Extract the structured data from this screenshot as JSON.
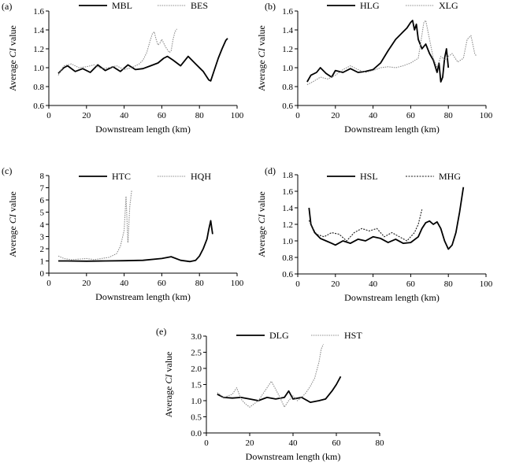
{
  "chart_data": [
    {
      "panel": "(a)",
      "type": "line",
      "xlabel": "Downstream length (km)",
      "ylabel_pre": "Average ",
      "ylabel_italic": "CI",
      "ylabel_post": " value",
      "xlim": [
        0,
        100
      ],
      "ylim": [
        0.6,
        1.6
      ],
      "xticks": [
        0,
        20,
        40,
        60,
        80,
        100
      ],
      "yticks": [
        0.6,
        0.8,
        1.0,
        1.2,
        1.4,
        1.6
      ],
      "ytick_labels": [
        "0.6",
        "0.8",
        "1.0",
        "1.2",
        "1.4",
        "1.6"
      ],
      "series": [
        {
          "name": "MBL",
          "style": "solid",
          "x": [
            5,
            8,
            10,
            14,
            18,
            22,
            26,
            30,
            34,
            38,
            42,
            46,
            50,
            54,
            58,
            61,
            63,
            66,
            70,
            74,
            78,
            82,
            85,
            86,
            88,
            90,
            92,
            94,
            95
          ],
          "y": [
            0.94,
            1.0,
            1.02,
            0.96,
            0.99,
            0.95,
            1.03,
            0.97,
            1.01,
            0.96,
            1.03,
            0.98,
            0.99,
            1.02,
            1.05,
            1.1,
            1.12,
            1.08,
            1.02,
            1.12,
            1.04,
            0.96,
            0.87,
            0.86,
            0.98,
            1.1,
            1.2,
            1.29,
            1.31
          ]
        },
        {
          "name": "BES",
          "style": "dotted",
          "x": [
            5,
            8,
            12,
            16,
            20,
            24,
            28,
            32,
            36,
            40,
            44,
            48,
            50,
            52,
            54,
            55,
            56,
            57,
            58,
            59,
            60,
            62,
            64,
            65,
            66,
            67,
            68
          ],
          "y": [
            0.92,
            1.02,
            1.04,
            1.0,
            1.01,
            1.03,
            0.99,
            1.0,
            1.02,
            0.98,
            1.0,
            1.04,
            1.08,
            1.16,
            1.3,
            1.36,
            1.38,
            1.3,
            1.24,
            1.26,
            1.3,
            1.22,
            1.16,
            1.18,
            1.3,
            1.38,
            1.41
          ]
        }
      ]
    },
    {
      "panel": "(b)",
      "type": "line",
      "xlabel": "Downstream length (km)",
      "ylabel_pre": "Average ",
      "ylabel_italic": "CI",
      "ylabel_post": " value",
      "xlim": [
        0,
        100
      ],
      "ylim": [
        0.6,
        1.6
      ],
      "xticks": [
        0,
        20,
        40,
        60,
        80,
        100
      ],
      "yticks": [
        0.6,
        0.8,
        1.0,
        1.2,
        1.4,
        1.6
      ],
      "ytick_labels": [
        "0.6",
        "0.8",
        "1.0",
        "1.2",
        "1.4",
        "1.6"
      ],
      "series": [
        {
          "name": "HLG",
          "style": "solid",
          "x": [
            5,
            7,
            10,
            12,
            15,
            18,
            20,
            24,
            28,
            32,
            36,
            40,
            44,
            48,
            52,
            56,
            58,
            60,
            61,
            62,
            63,
            64,
            66,
            68,
            70,
            72,
            74,
            75,
            76,
            77,
            78,
            79,
            80
          ],
          "y": [
            0.85,
            0.92,
            0.95,
            1.0,
            0.94,
            0.9,
            0.97,
            0.95,
            0.99,
            0.95,
            0.96,
            0.98,
            1.05,
            1.18,
            1.3,
            1.38,
            1.42,
            1.48,
            1.5,
            1.4,
            1.46,
            1.3,
            1.2,
            1.25,
            1.15,
            1.08,
            0.95,
            1.05,
            0.85,
            0.9,
            1.1,
            1.2,
            1.0
          ]
        },
        {
          "name": "XLG",
          "style": "dotted",
          "x": [
            5,
            8,
            12,
            16,
            20,
            24,
            28,
            32,
            36,
            40,
            44,
            48,
            52,
            56,
            60,
            64,
            66,
            67,
            68,
            70,
            72,
            74,
            76,
            78,
            80,
            82,
            85,
            88,
            90,
            92,
            94,
            95
          ],
          "y": [
            0.82,
            0.85,
            0.9,
            0.88,
            0.92,
            0.98,
            1.02,
            0.98,
            0.95,
            0.97,
            1.0,
            1.01,
            1.0,
            1.02,
            1.05,
            1.1,
            1.35,
            1.48,
            1.5,
            1.3,
            1.1,
            1.0,
            1.12,
            1.08,
            1.12,
            1.15,
            1.06,
            1.1,
            1.3,
            1.34,
            1.15,
            1.12
          ]
        }
      ]
    },
    {
      "panel": "(c)",
      "type": "line",
      "xlabel": "Downstream length (km)",
      "ylabel_pre": "Average ",
      "ylabel_italic": "CI",
      "ylabel_post": " value",
      "xlim": [
        0,
        100
      ],
      "ylim": [
        0,
        8
      ],
      "xticks": [
        0,
        20,
        40,
        60,
        80,
        100
      ],
      "yticks": [
        0,
        1,
        2,
        3,
        4,
        5,
        6,
        7,
        8
      ],
      "ytick_labels": [
        "0",
        "1",
        "2",
        "3",
        "4",
        "5",
        "6",
        "7",
        "8"
      ],
      "series": [
        {
          "name": "HTC",
          "style": "solid",
          "x": [
            5,
            10,
            20,
            30,
            40,
            50,
            60,
            65,
            70,
            75,
            78,
            80,
            82,
            84,
            85,
            86,
            87
          ],
          "y": [
            1.0,
            1.0,
            0.98,
            1.0,
            1.02,
            1.05,
            1.2,
            1.35,
            1.05,
            0.95,
            1.05,
            1.4,
            2.0,
            2.8,
            3.6,
            4.3,
            3.2
          ]
        },
        {
          "name": "HQH",
          "style": "dotted",
          "x": [
            5,
            8,
            12,
            16,
            20,
            24,
            28,
            32,
            36,
            38,
            40,
            41,
            42,
            43,
            44
          ],
          "y": [
            1.4,
            1.2,
            1.1,
            1.15,
            1.2,
            1.1,
            1.2,
            1.3,
            1.6,
            2.2,
            3.5,
            6.3,
            2.5,
            5.5,
            6.8
          ]
        }
      ]
    },
    {
      "panel": "(d)",
      "type": "line",
      "xlabel": "Downstream length (km)",
      "ylabel_pre": "Average ",
      "ylabel_italic": "CI",
      "ylabel_post": " value",
      "xlim": [
        0,
        100
      ],
      "ylim": [
        0.6,
        1.8
      ],
      "xticks": [
        0,
        20,
        40,
        60,
        80,
        100
      ],
      "yticks": [
        0.6,
        0.8,
        1.0,
        1.2,
        1.4,
        1.6,
        1.8
      ],
      "ytick_labels": [
        "0.6",
        "0.8",
        "1.0",
        "1.2",
        "1.4",
        "1.6",
        "1.8"
      ],
      "series": [
        {
          "name": "HSL",
          "style": "solid",
          "x": [
            6,
            7,
            9,
            12,
            15,
            18,
            20,
            24,
            28,
            32,
            36,
            40,
            44,
            48,
            52,
            56,
            60,
            64,
            66,
            68,
            70,
            72,
            74,
            76,
            78,
            80,
            82,
            84,
            86,
            88
          ],
          "y": [
            1.4,
            1.2,
            1.1,
            1.03,
            1.0,
            0.97,
            0.95,
            1.0,
            0.97,
            1.02,
            1.0,
            1.05,
            1.03,
            0.98,
            1.02,
            0.97,
            0.98,
            1.05,
            1.15,
            1.22,
            1.24,
            1.2,
            1.23,
            1.15,
            1.0,
            0.9,
            0.95,
            1.1,
            1.35,
            1.65
          ]
        },
        {
          "name": "MHG",
          "style": "dashed",
          "x": [
            6,
            8,
            10,
            14,
            18,
            22,
            26,
            30,
            34,
            38,
            42,
            46,
            50,
            54,
            58,
            62,
            64,
            66
          ],
          "y": [
            1.25,
            1.15,
            1.08,
            1.05,
            1.1,
            1.08,
            1.0,
            1.1,
            1.15,
            1.12,
            1.15,
            1.05,
            1.1,
            1.05,
            1.0,
            1.1,
            1.2,
            1.38
          ]
        }
      ]
    },
    {
      "panel": "(e)",
      "type": "line",
      "xlabel": "Downstream length (km)",
      "ylabel_pre": "Average ",
      "ylabel_italic": "CI",
      "ylabel_post": " value",
      "xlim": [
        0,
        80
      ],
      "ylim": [
        0.0,
        3.0
      ],
      "xticks": [
        0,
        20,
        40,
        60,
        80
      ],
      "yticks": [
        0.0,
        0.5,
        1.0,
        1.5,
        2.0,
        2.5,
        3.0
      ],
      "ytick_labels": [
        "0.0",
        "0.5",
        "1.0",
        "1.5",
        "2.0",
        "2.5",
        "3.0"
      ],
      "series": [
        {
          "name": "DLG",
          "style": "solid",
          "x": [
            5,
            8,
            12,
            16,
            20,
            24,
            28,
            32,
            36,
            38,
            40,
            44,
            48,
            52,
            55,
            58,
            60,
            62
          ],
          "y": [
            1.2,
            1.1,
            1.08,
            1.1,
            1.05,
            1.0,
            1.1,
            1.05,
            1.1,
            1.3,
            1.05,
            1.1,
            0.95,
            1.0,
            1.05,
            1.3,
            1.5,
            1.75
          ]
        },
        {
          "name": "HST",
          "style": "dotted",
          "x": [
            5,
            8,
            12,
            14,
            16,
            18,
            20,
            24,
            28,
            30,
            32,
            34,
            36,
            38,
            40,
            42,
            44,
            46,
            48,
            50,
            52,
            53,
            54
          ],
          "y": [
            1.25,
            1.1,
            1.2,
            1.4,
            1.05,
            0.9,
            0.8,
            1.0,
            1.4,
            1.6,
            1.35,
            1.1,
            0.8,
            1.0,
            1.15,
            1.0,
            1.1,
            1.25,
            1.45,
            1.7,
            2.2,
            2.6,
            2.75
          ]
        }
      ]
    }
  ]
}
